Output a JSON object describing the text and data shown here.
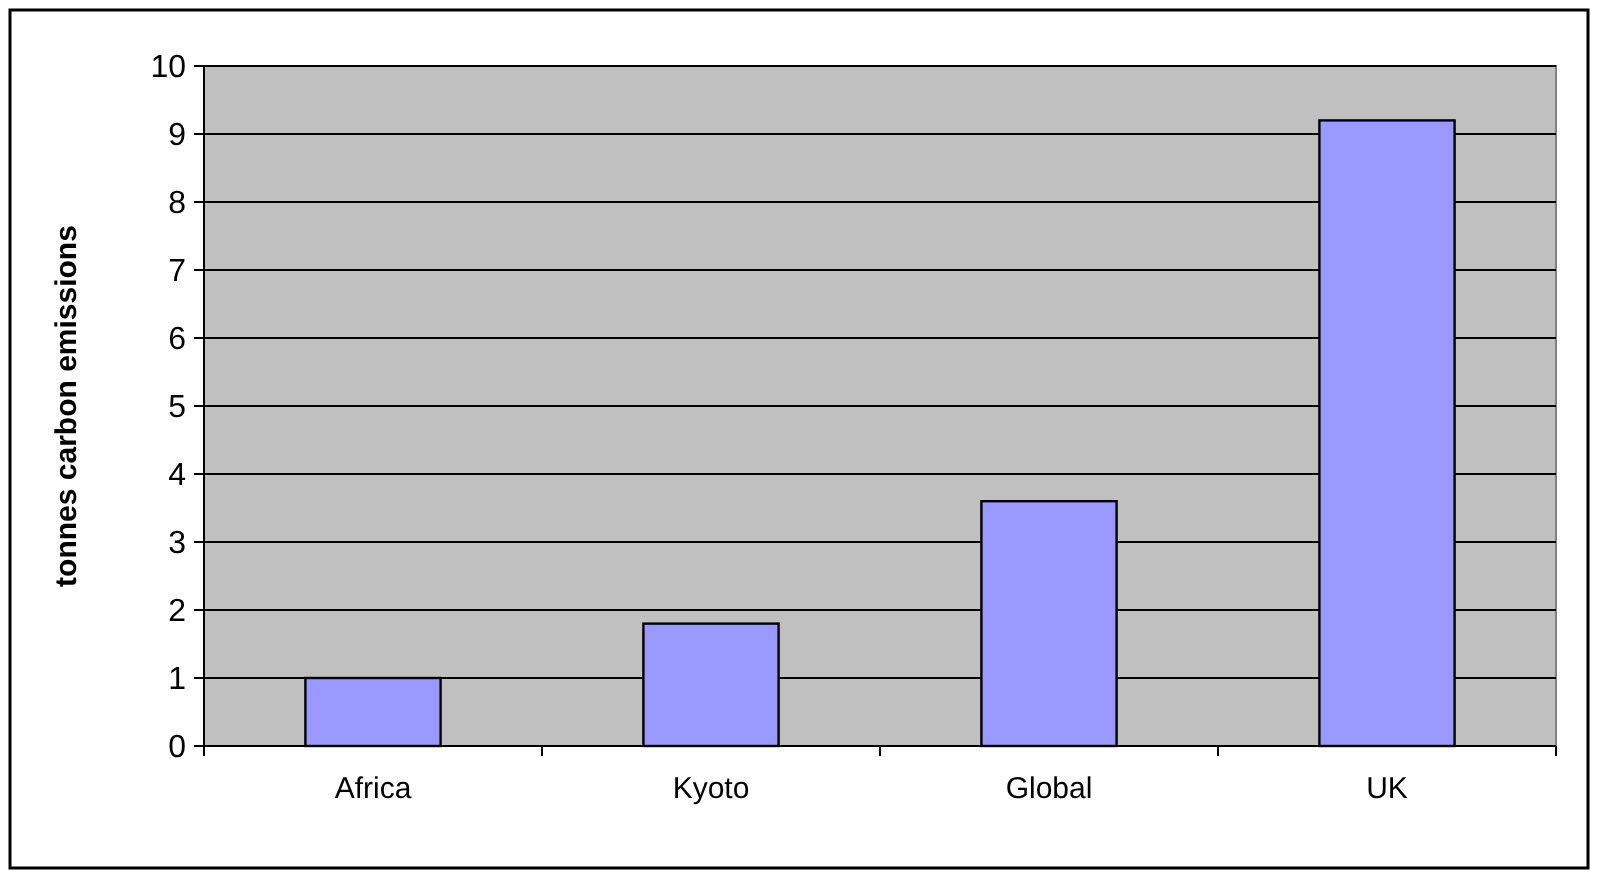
{
  "chart_data": {
    "type": "bar",
    "ylabel": "tonnes carbon emissions",
    "categories": [
      "Africa",
      "Kyoto",
      "Global",
      "UK"
    ],
    "values": [
      1.0,
      1.8,
      3.6,
      9.2
    ],
    "color": "#9999ff",
    "ylim": [
      0,
      10
    ],
    "yticks": [
      0,
      1,
      2,
      3,
      4,
      5,
      6,
      7,
      8,
      9,
      10
    ],
    "grid": "y"
  }
}
